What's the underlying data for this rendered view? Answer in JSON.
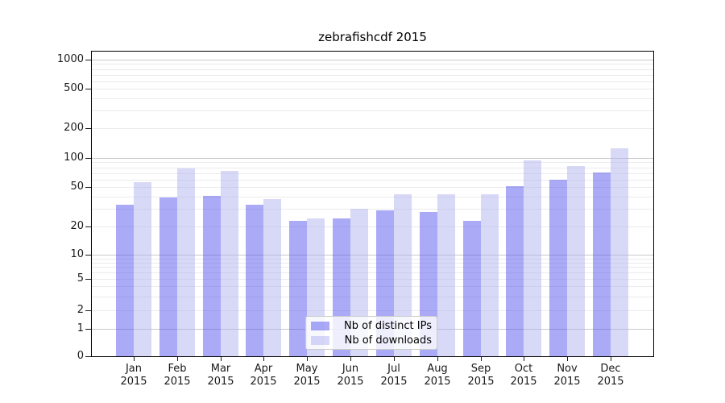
{
  "chart_data": {
    "type": "bar",
    "title": "zebrafishcdf 2015",
    "categories": [
      "Jan",
      "Feb",
      "Mar",
      "Apr",
      "May",
      "Jun",
      "Jul",
      "Aug",
      "Sep",
      "Oct",
      "Nov",
      "Dec"
    ],
    "x_tick_second_line": "2015",
    "series": [
      {
        "key": "distinct-ips",
        "name": "Nb of distinct IPs",
        "color": "#5555ee",
        "values": [
          33,
          39,
          41,
          33,
          23,
          24,
          29,
          28,
          23,
          51,
          59,
          71
        ]
      },
      {
        "key": "downloads",
        "name": "Nb of downloads",
        "color": "#b2b2f0",
        "values": [
          56,
          78,
          73,
          38,
          24,
          30,
          42,
          42,
          42,
          94,
          82,
          126
        ]
      }
    ],
    "bar_alpha": 0.5,
    "y_axis": {
      "scale": "log-with-zero",
      "ticks": [
        0,
        1,
        2,
        5,
        10,
        20,
        50,
        100,
        200,
        500,
        1000
      ],
      "ylim_top": 1300
    },
    "grid": {
      "major_levels": [
        1,
        10,
        100,
        1000
      ],
      "major_color": "#c9c9c9",
      "minor_color": "#ebebeb"
    },
    "legend": {
      "position": "lower-center-inside"
    }
  }
}
